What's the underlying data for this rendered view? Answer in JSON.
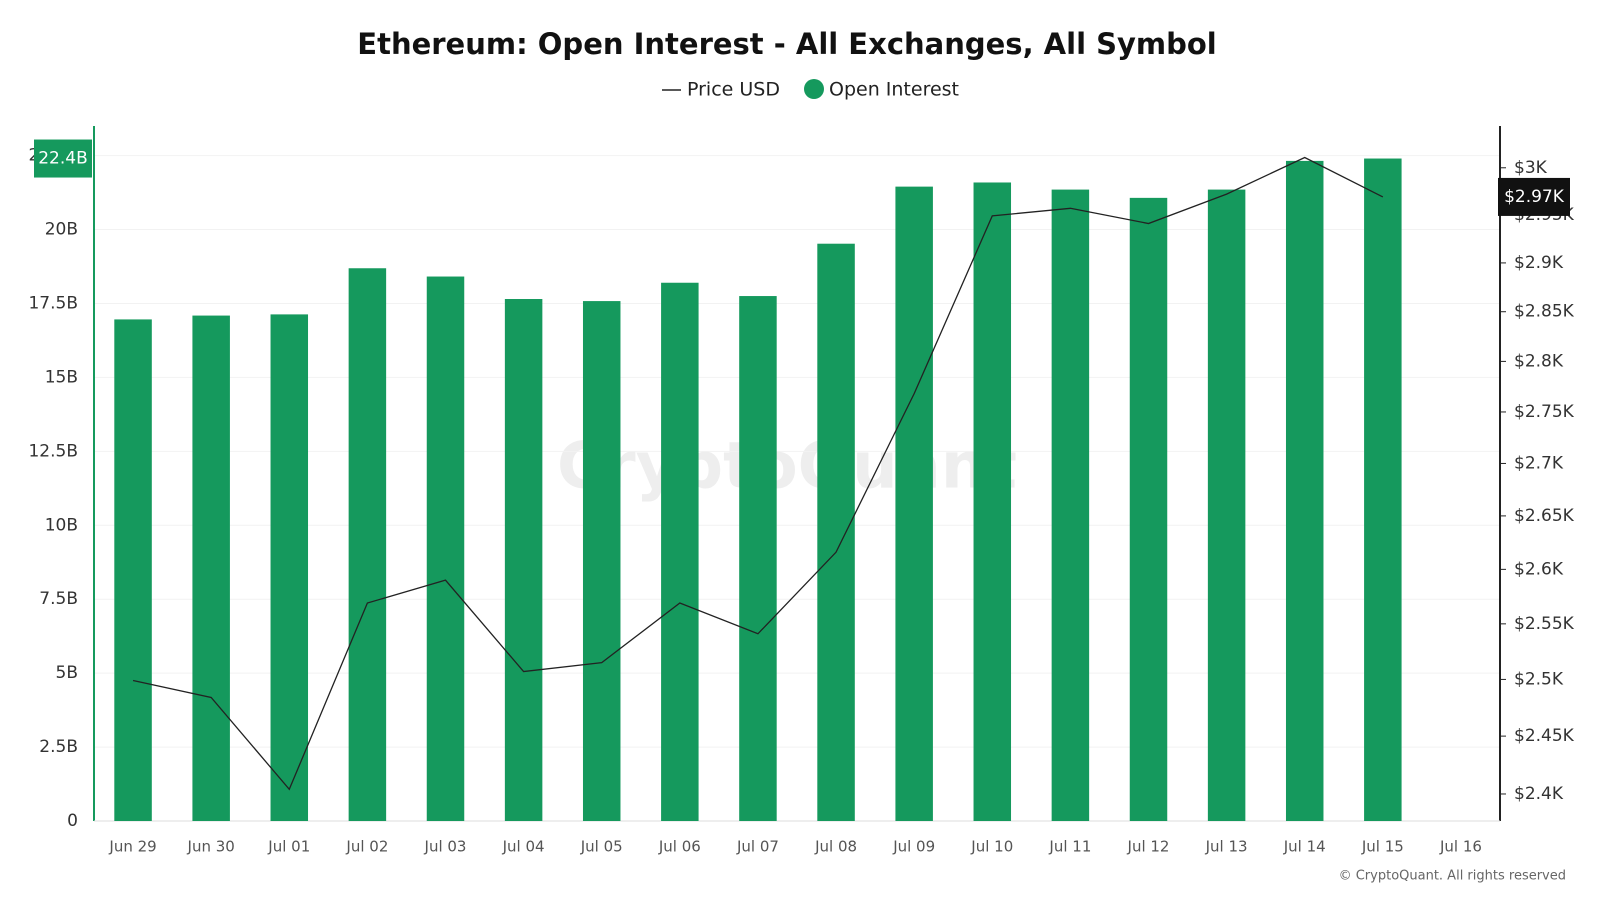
{
  "chart_data": {
    "type": "bar",
    "title": "Ethereum: Open Interest - All Exchanges, All Symbol",
    "watermark": "CryptoQuant",
    "credit": "© CryptoQuant. All rights reserved",
    "categories": [
      "Jun 29",
      "Jun 30",
      "Jul 01",
      "Jul 02",
      "Jul 03",
      "Jul 04",
      "Jul 05",
      "Jul 06",
      "Jul 07",
      "Jul 08",
      "Jul 09",
      "Jul 10",
      "Jul 11",
      "Jul 12",
      "Jul 13",
      "Jul 14",
      "Jul 15",
      "Jul 16"
    ],
    "series": [
      {
        "name": "Price USD",
        "type": "line",
        "axis": "y2",
        "color": "#222222",
        "values": [
          2499,
          2484,
          2404,
          2569,
          2590,
          2507,
          2515,
          2569,
          2541,
          2616,
          2768,
          2949,
          2957,
          2941,
          2972,
          3011,
          2969,
          null
        ],
        "value_labels": [
          null,
          null,
          null,
          null,
          null,
          null,
          null,
          null,
          null,
          null,
          null,
          null,
          null,
          null,
          null,
          null,
          "$2.97K",
          null
        ]
      },
      {
        "name": "Open Interest",
        "type": "bar",
        "color": "#15995d",
        "values": [
          16.96,
          17.09,
          17.13,
          18.69,
          18.41,
          17.65,
          17.58,
          18.2,
          17.75,
          19.52,
          21.45,
          21.59,
          21.35,
          21.07,
          21.35,
          22.32,
          22.4,
          null
        ],
        "value_labels": [
          null,
          null,
          null,
          null,
          null,
          null,
          null,
          null,
          null,
          null,
          null,
          null,
          null,
          null,
          null,
          null,
          "22.4B",
          null
        ]
      }
    ],
    "ylim": [
      0,
      23.5
    ],
    "yticks": [
      {
        "value": 0,
        "label": "0"
      },
      {
        "value": 2.5,
        "label": "2.5B"
      },
      {
        "value": 5,
        "label": "5B"
      },
      {
        "value": 7.5,
        "label": "7.5B"
      },
      {
        "value": 10,
        "label": "10B"
      },
      {
        "value": 12.5,
        "label": "12.5B"
      },
      {
        "value": 15,
        "label": "15B"
      },
      {
        "value": 17.5,
        "label": "17.5B"
      },
      {
        "value": 20,
        "label": "20B"
      },
      {
        "value": 22.5,
        "label": "22.5B"
      }
    ],
    "y2lim": [
      2377,
      3045
    ],
    "y2log": true,
    "y2ticks": [
      {
        "value": 2400,
        "label": "$2.4K"
      },
      {
        "value": 2450,
        "label": "$2.45K"
      },
      {
        "value": 2500,
        "label": "$2.5K"
      },
      {
        "value": 2550,
        "label": "$2.55K"
      },
      {
        "value": 2600,
        "label": "$2.6K"
      },
      {
        "value": 2650,
        "label": "$2.65K"
      },
      {
        "value": 2700,
        "label": "$2.7K"
      },
      {
        "value": 2750,
        "label": "$2.75K"
      },
      {
        "value": 2800,
        "label": "$2.8K"
      },
      {
        "value": 2850,
        "label": "$2.85K"
      },
      {
        "value": 2900,
        "label": "$2.9K"
      },
      {
        "value": 2950,
        "label": "$2.95K"
      },
      {
        "value": 3000,
        "label": "$3K"
      }
    ],
    "grid": true
  }
}
